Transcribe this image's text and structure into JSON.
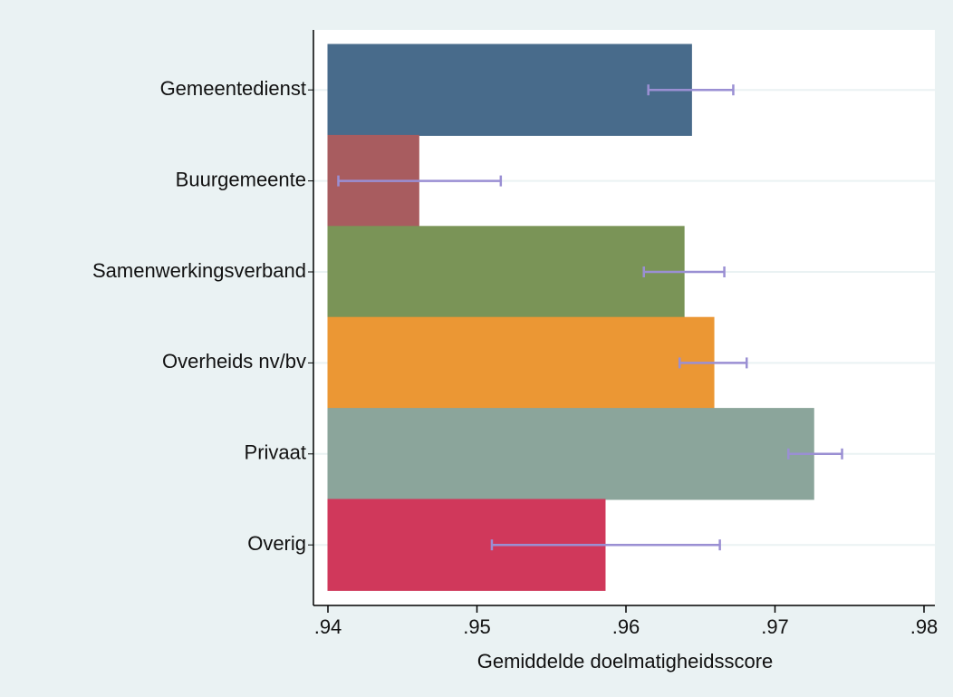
{
  "chart_data": {
    "type": "bar",
    "orientation": "horizontal",
    "xlabel": "Gemiddelde doelmatigheidsscore",
    "categories": [
      "Gemeentedienst",
      "Buurgemeente",
      "Samenwerkingsverband",
      "Overheids nv/bv",
      "Privaat",
      "Overig"
    ],
    "values": [
      0.9644,
      0.9461,
      0.9639,
      0.9659,
      0.9726,
      0.9586
    ],
    "ci_low": [
      0.9615,
      0.9407,
      0.9612,
      0.9636,
      0.9709,
      0.951
    ],
    "ci_high": [
      0.9672,
      0.9516,
      0.9666,
      0.9681,
      0.9745,
      0.9663
    ],
    "colors": [
      "#486b8b",
      "#a85c5f",
      "#7a9457",
      "#eb9734",
      "#8ba59b",
      "#d0385b"
    ],
    "error_color": "#9a8fd3",
    "xlim": [
      0.94,
      0.98
    ],
    "xticks": [
      {
        "value": 0.94,
        "label": ".94"
      },
      {
        "value": 0.95,
        "label": ".95"
      },
      {
        "value": 0.96,
        "label": ".96"
      },
      {
        "value": 0.97,
        "label": ".97"
      },
      {
        "value": 0.98,
        "label": ".98"
      }
    ],
    "grid": true
  }
}
